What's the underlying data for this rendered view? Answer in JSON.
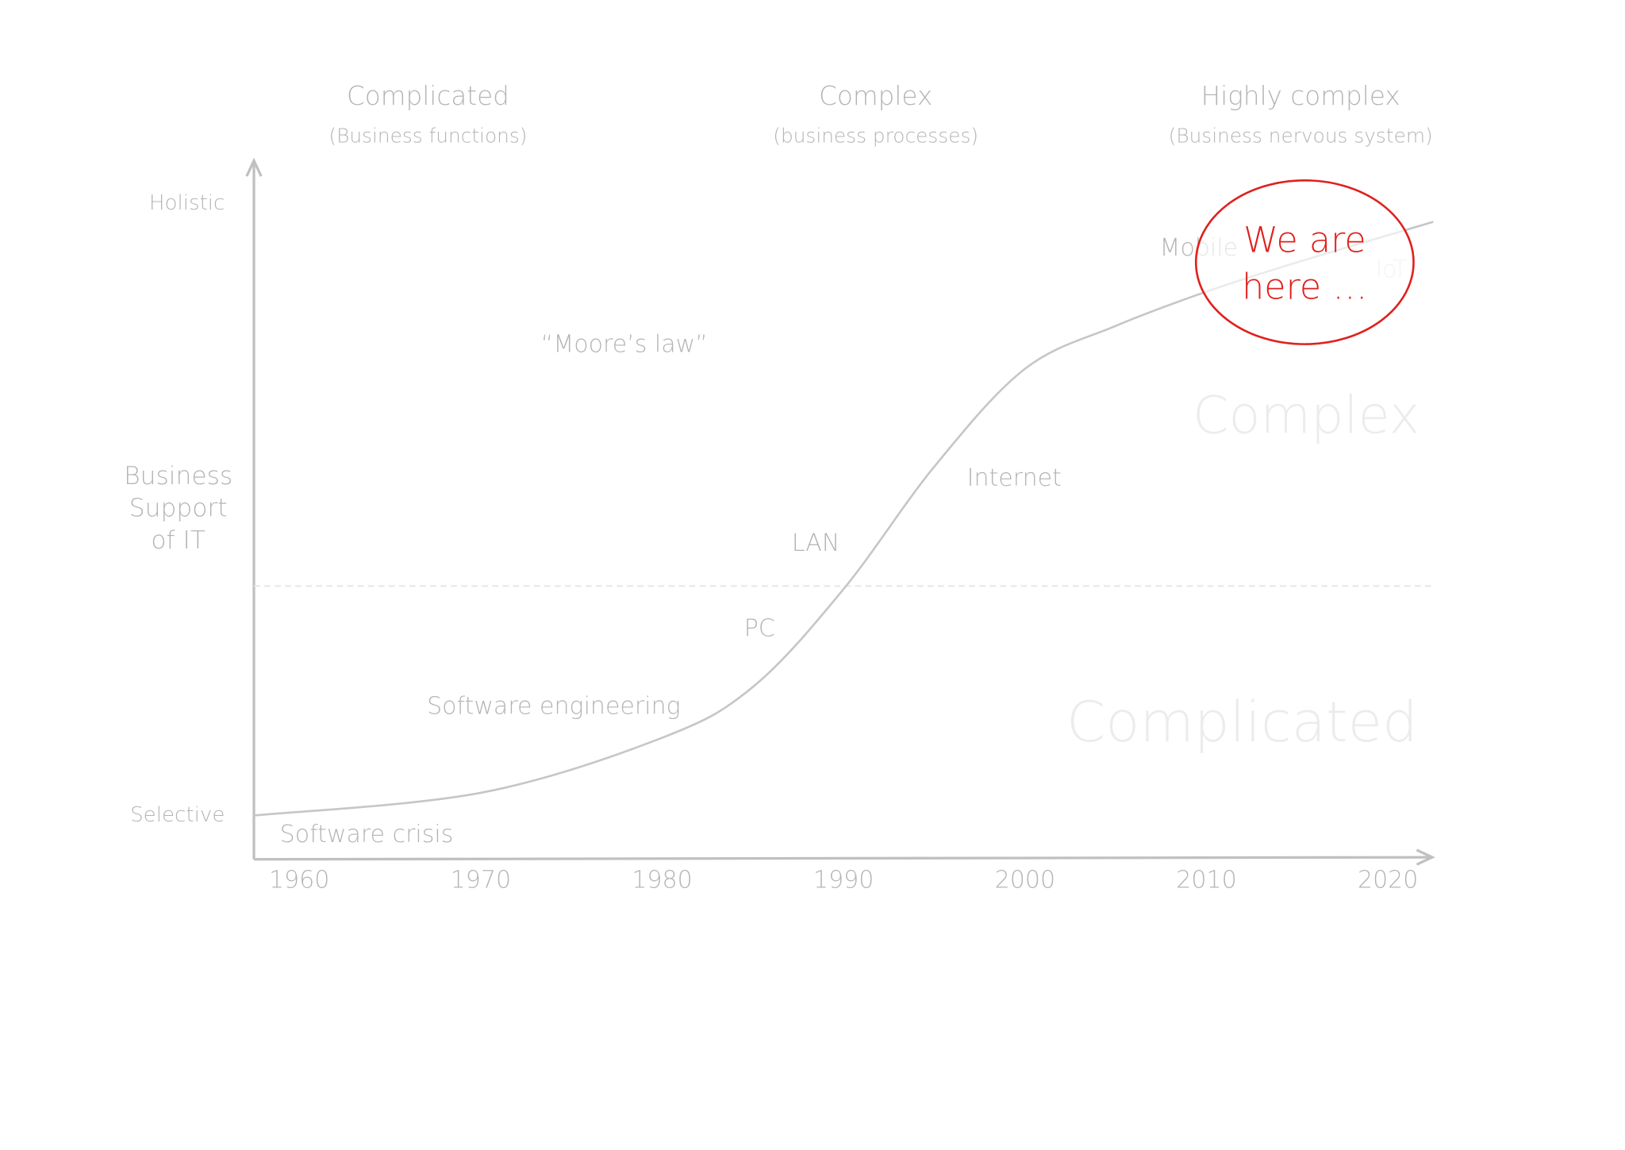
{
  "chart_data": {
    "type": "line",
    "headers": [
      {
        "title": "Complicated",
        "subtitle": "(Business functions)"
      },
      {
        "title": "Complex",
        "subtitle": "(business processes)"
      },
      {
        "title": "Highly complex",
        "subtitle": "(Business nervous system)"
      }
    ],
    "ylabel": [
      "Business",
      "Support",
      "of IT"
    ],
    "x": [
      1957.5,
      1970,
      1980,
      1985,
      1990,
      1995,
      2000,
      2005,
      2010,
      2015,
      2022.5
    ],
    "values": [
      0,
      3.7,
      12.7,
      21,
      37,
      57,
      73,
      80,
      85.6,
      90.4,
      97
    ],
    "color": "#c6c6c6",
    "xlim": [
      1957.5,
      2022.5
    ],
    "xticks": [
      1960,
      1970,
      1980,
      1990,
      2000,
      2010,
      2020
    ],
    "ylim": [
      -7,
      107
    ],
    "yticks": [
      {
        "value": 0,
        "label": "Selective"
      },
      {
        "value": 100,
        "label": "Holistic"
      }
    ],
    "divider": 37.5,
    "annotations": [
      "Software crisis",
      "Software engineering",
      "PC",
      "LAN",
      "Internet",
      "Mobile",
      "IoT",
      "“Moore’s law”"
    ],
    "zones": [
      "Complex",
      "Complicated"
    ],
    "callout": [
      "We are",
      "here …"
    ],
    "callout_color": "#e0201c"
  }
}
